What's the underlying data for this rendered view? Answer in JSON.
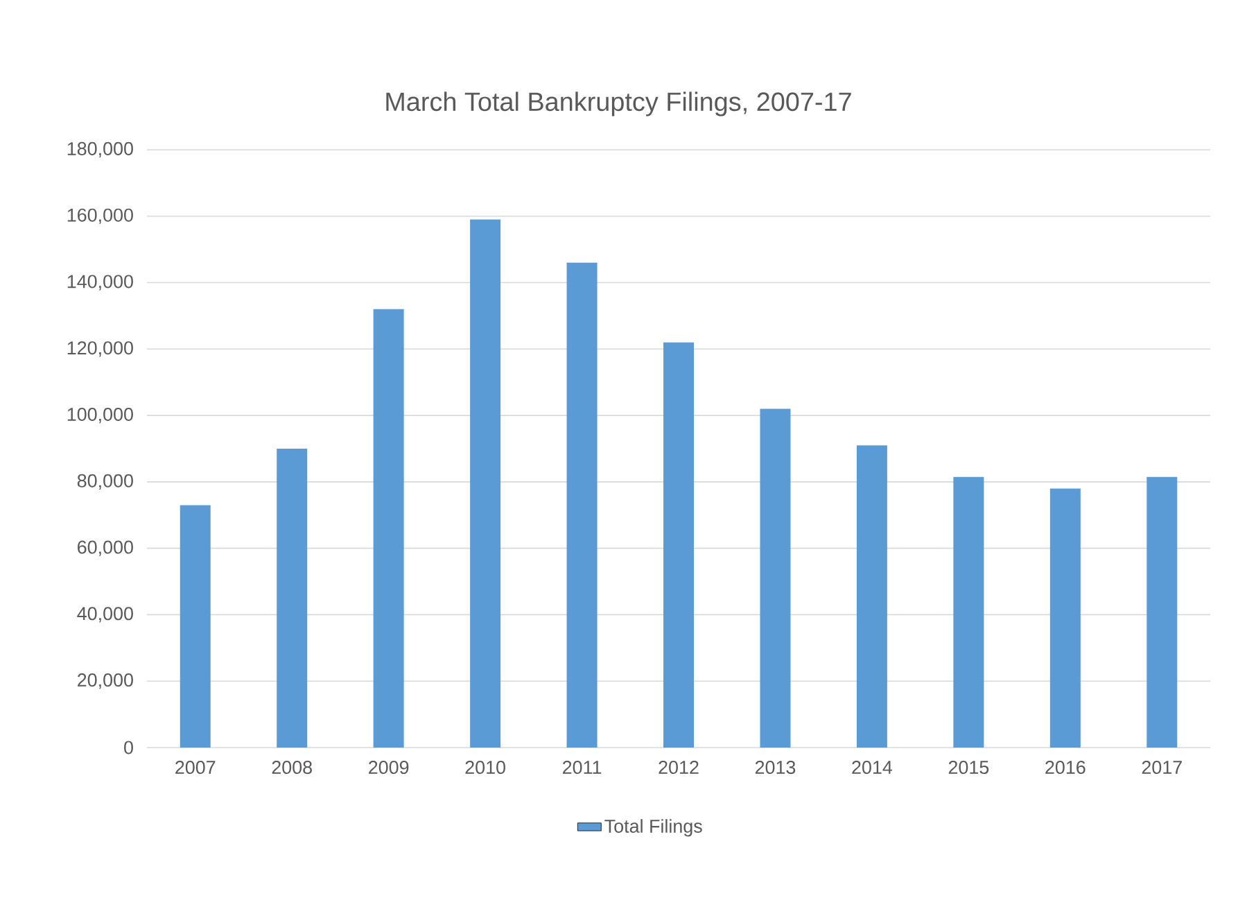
{
  "chart_data": {
    "type": "bar",
    "title": "March Total Bankruptcy Filings, 2007-17",
    "categories": [
      "2007",
      "2008",
      "2009",
      "2010",
      "2011",
      "2012",
      "2013",
      "2014",
      "2015",
      "2016",
      "2017"
    ],
    "series": [
      {
        "name": "Total Filings",
        "color": "#5b9bd5",
        "values": [
          73000,
          90000,
          132000,
          159000,
          146000,
          122000,
          102000,
          91000,
          81500,
          78000,
          81500
        ]
      }
    ],
    "ylim": [
      0,
      180000
    ],
    "yticks": [
      0,
      {
        "value": 20000,
        "label": "20,000"
      },
      {
        "value": 40000,
        "label": "40,000"
      },
      {
        "value": 60000,
        "label": "60,000"
      },
      {
        "value": 80000,
        "label": "80,000"
      },
      {
        "value": 100000,
        "label": "100,000"
      },
      {
        "value": 120000,
        "label": "120,000"
      },
      {
        "value": 140000,
        "label": "140,000"
      },
      {
        "value": 160000,
        "label": "160,000"
      },
      {
        "value": 180000,
        "label": "180,000"
      }
    ],
    "grid": "y",
    "legend": "bottom"
  }
}
